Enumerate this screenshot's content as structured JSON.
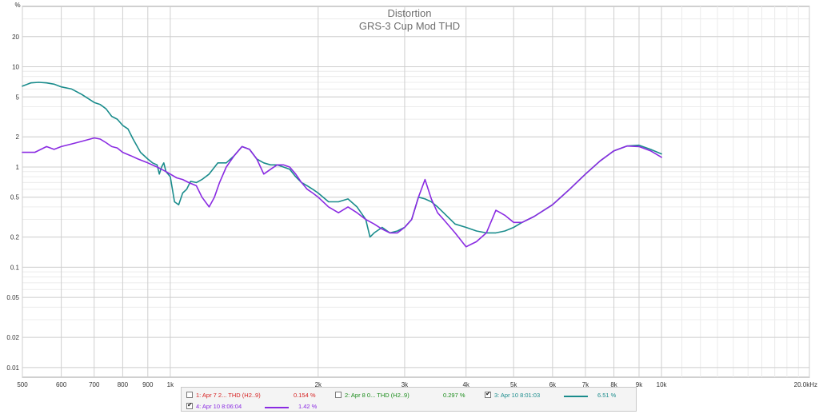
{
  "chart_data": {
    "type": "line",
    "title": "Distortion",
    "subtitle": "GRS-3 Cup Mod THD",
    "xscale": "log",
    "yscale": "log",
    "xlim": [
      500,
      20000
    ],
    "ylim": [
      0.008,
      40
    ],
    "y_unit_label": "%",
    "x_ticks": [
      {
        "v": 500,
        "label": "500"
      },
      {
        "v": 600,
        "label": "600"
      },
      {
        "v": 700,
        "label": "700"
      },
      {
        "v": 800,
        "label": "800"
      },
      {
        "v": 900,
        "label": "900"
      },
      {
        "v": 1000,
        "label": "1k"
      },
      {
        "v": 2000,
        "label": "2k"
      },
      {
        "v": 3000,
        "label": "3k"
      },
      {
        "v": 4000,
        "label": "4k"
      },
      {
        "v": 5000,
        "label": "5k"
      },
      {
        "v": 6000,
        "label": "6k"
      },
      {
        "v": 7000,
        "label": "7k"
      },
      {
        "v": 8000,
        "label": "8k"
      },
      {
        "v": 9000,
        "label": "9k"
      },
      {
        "v": 10000,
        "label": "10k"
      },
      {
        "v": 20000,
        "label": "20.0kHz"
      }
    ],
    "y_ticks": [
      {
        "v": 20,
        "label": "20"
      },
      {
        "v": 10,
        "label": "10"
      },
      {
        "v": 5,
        "label": "5"
      },
      {
        "v": 2,
        "label": "2"
      },
      {
        "v": 1,
        "label": "1"
      },
      {
        "v": 0.5,
        "label": "0.5"
      },
      {
        "v": 0.2,
        "label": "0.2"
      },
      {
        "v": 0.1,
        "label": "0.1"
      },
      {
        "v": 0.05,
        "label": "0.05"
      },
      {
        "v": 0.02,
        "label": "0.02"
      },
      {
        "v": 0.01,
        "label": "0.01"
      }
    ],
    "grid": true,
    "series": [
      {
        "name": "3: Apr 10 8:01:03",
        "color": "#1a8c8c",
        "x": [
          500,
          520,
          540,
          560,
          580,
          600,
          630,
          660,
          700,
          720,
          740,
          760,
          780,
          800,
          820,
          840,
          870,
          900,
          920,
          940,
          950,
          960,
          970,
          980,
          1000,
          1020,
          1040,
          1060,
          1080,
          1100,
          1130,
          1160,
          1200,
          1250,
          1300,
          1350,
          1400,
          1450,
          1500,
          1550,
          1600,
          1650,
          1700,
          1750,
          1800,
          1850,
          1900,
          1950,
          2000,
          2100,
          2200,
          2300,
          2400,
          2500,
          2550,
          2600,
          2700,
          2800,
          2900,
          3000,
          3100,
          3200,
          3300,
          3400,
          3500,
          3600,
          3800,
          4000,
          4200,
          4400,
          4600,
          4800,
          5000,
          5200,
          5500,
          6000,
          6500,
          7000,
          7500,
          8000,
          8500,
          9000,
          9500,
          10000
        ],
        "values": [
          6.4,
          6.9,
          7.0,
          6.9,
          6.7,
          6.3,
          6.0,
          5.3,
          4.4,
          4.2,
          3.8,
          3.2,
          3.0,
          2.6,
          2.4,
          1.9,
          1.4,
          1.2,
          1.1,
          1.05,
          0.85,
          1.0,
          1.1,
          0.9,
          0.8,
          0.45,
          0.42,
          0.55,
          0.6,
          0.72,
          0.7,
          0.75,
          0.85,
          1.1,
          1.1,
          1.3,
          1.6,
          1.5,
          1.2,
          1.1,
          1.05,
          1.05,
          1.0,
          0.95,
          0.8,
          0.7,
          0.65,
          0.6,
          0.55,
          0.45,
          0.45,
          0.48,
          0.4,
          0.3,
          0.2,
          0.22,
          0.25,
          0.22,
          0.23,
          0.25,
          0.3,
          0.5,
          0.48,
          0.45,
          0.4,
          0.35,
          0.27,
          0.25,
          0.23,
          0.22,
          0.22,
          0.23,
          0.25,
          0.28,
          0.32,
          0.42,
          0.6,
          0.85,
          1.15,
          1.45,
          1.62,
          1.65,
          1.5,
          1.35
        ]
      },
      {
        "name": "4: Apr 10 8:06:04",
        "color": "#8a2be2",
        "x": [
          500,
          530,
          560,
          580,
          600,
          630,
          660,
          700,
          720,
          740,
          760,
          780,
          800,
          830,
          860,
          900,
          940,
          960,
          980,
          1000,
          1030,
          1060,
          1090,
          1130,
          1160,
          1200,
          1230,
          1260,
          1300,
          1350,
          1400,
          1450,
          1500,
          1550,
          1600,
          1650,
          1700,
          1750,
          1800,
          1850,
          1900,
          1950,
          2000,
          2100,
          2200,
          2300,
          2400,
          2500,
          2600,
          2700,
          2800,
          2900,
          3000,
          3100,
          3200,
          3300,
          3400,
          3500,
          3600,
          3800,
          4000,
          4100,
          4200,
          4400,
          4600,
          4700,
          4800,
          5000,
          5200,
          5500,
          6000,
          6500,
          7000,
          7500,
          8000,
          8500,
          9000,
          9500,
          10000
        ],
        "values": [
          1.4,
          1.4,
          1.6,
          1.5,
          1.6,
          1.7,
          1.8,
          1.95,
          1.9,
          1.75,
          1.6,
          1.55,
          1.4,
          1.3,
          1.2,
          1.1,
          1.0,
          0.95,
          0.9,
          0.85,
          0.78,
          0.75,
          0.7,
          0.65,
          0.5,
          0.4,
          0.5,
          0.7,
          1.0,
          1.3,
          1.6,
          1.5,
          1.2,
          0.85,
          0.95,
          1.05,
          1.05,
          1.0,
          0.85,
          0.7,
          0.6,
          0.55,
          0.5,
          0.4,
          0.35,
          0.4,
          0.35,
          0.3,
          0.27,
          0.24,
          0.22,
          0.22,
          0.25,
          0.3,
          0.5,
          0.75,
          0.48,
          0.35,
          0.3,
          0.22,
          0.16,
          0.17,
          0.18,
          0.22,
          0.37,
          0.35,
          0.33,
          0.28,
          0.28,
          0.32,
          0.42,
          0.6,
          0.85,
          1.15,
          1.45,
          1.62,
          1.6,
          1.45,
          1.25
        ]
      }
    ]
  },
  "legend": [
    {
      "name": "1: Apr 7 2... THD (H2..9)",
      "value": "0.154 %",
      "color": "#d62020",
      "checked": false,
      "swatch": false
    },
    {
      "name": "2: Apr 8 0... THD (H2..9)",
      "value": "0.297 %",
      "color": "#1a8c1a",
      "checked": false,
      "swatch": false
    },
    {
      "name": "3: Apr 10 8:01:03",
      "value": "6.51 %",
      "color": "#1a8c8c",
      "checked": true,
      "swatch": true
    },
    {
      "name": "4: Apr 10 8:06:04",
      "value": "1.42 %",
      "color": "#8a2be2",
      "checked": true,
      "swatch": true
    }
  ]
}
